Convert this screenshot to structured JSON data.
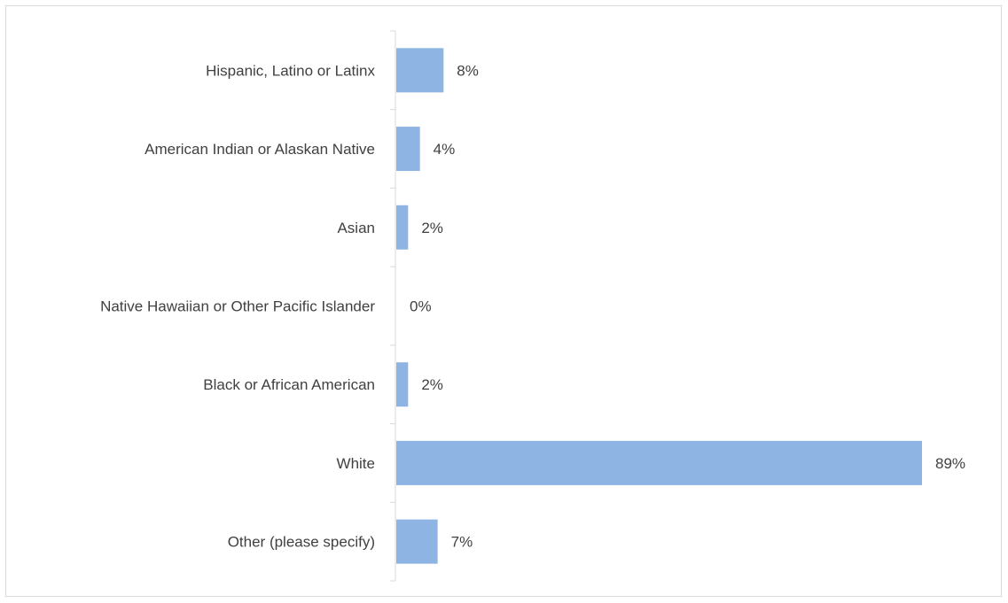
{
  "chart_data": {
    "type": "bar",
    "orientation": "horizontal",
    "categories": [
      "Hispanic, Latino or Latinx",
      "American Indian or Alaskan Native",
      "Asian",
      "Native Hawaiian or Other Pacific Islander",
      "Black or African American",
      "White",
      "Other (please specify)"
    ],
    "values": [
      8,
      4,
      2,
      0,
      2,
      89,
      7
    ],
    "value_labels": [
      "8%",
      "4%",
      "2%",
      "0%",
      "2%",
      "89%",
      "7%"
    ],
    "unit": "%",
    "xlim": [
      0,
      100
    ],
    "grid": false,
    "legend": "none",
    "bar_color": "#8eb4e3",
    "axis_color": "#d9d9d9",
    "text_color": "#404040"
  }
}
